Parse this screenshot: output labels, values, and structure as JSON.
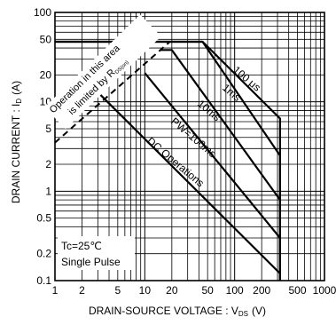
{
  "chart_data": {
    "type": "line",
    "title": "",
    "xlabel": "DRAIN-SOURCE VOLTAGE : V",
    "xlabel_sub": "DS",
    "xlabel_unit": "(V)",
    "ylabel": "DRAIN CURRENT : I",
    "ylabel_sub": "D",
    "ylabel_unit": "(A)",
    "x_scale": "log",
    "y_scale": "log",
    "xlim": [
      1,
      1000
    ],
    "ylim": [
      0.1,
      100
    ],
    "grid": true,
    "x_ticks": [
      {
        "v": 1,
        "label": "1"
      },
      {
        "v": 2,
        "label": "2"
      },
      {
        "v": 5,
        "label": "5"
      },
      {
        "v": 10,
        "label": "10"
      },
      {
        "v": 20,
        "label": "20"
      },
      {
        "v": 50,
        "label": "50"
      },
      {
        "v": 100,
        "label": "100"
      },
      {
        "v": 200,
        "label": "200"
      },
      {
        "v": 500,
        "label": "500"
      },
      {
        "v": 1000,
        "label": "1000"
      }
    ],
    "y_ticks": [
      {
        "v": 0.1,
        "label": "0.1"
      },
      {
        "v": 0.2,
        "label": "0.2"
      },
      {
        "v": 0.5,
        "label": "0.5"
      },
      {
        "v": 1,
        "label": "1"
      },
      {
        "v": 2,
        "label": "2"
      },
      {
        "v": 5,
        "label": "5"
      },
      {
        "v": 10,
        "label": "10"
      },
      {
        "v": 20,
        "label": "20"
      },
      {
        "v": 50,
        "label": "50"
      },
      {
        "v": 100,
        "label": "100"
      }
    ],
    "limit_line": {
      "x": [
        1,
        19
      ],
      "y": [
        3.5,
        47
      ]
    },
    "series": [
      {
        "name": "100 μs",
        "x": [
          1,
          44,
          320,
          320
        ],
        "y": [
          47,
          47,
          6.5,
          0.1
        ]
      },
      {
        "name": "1ms",
        "x": [
          1,
          44,
          320,
          320
        ],
        "y": [
          47,
          47,
          2.5,
          0.1
        ]
      },
      {
        "name": "10ms",
        "x": [
          15,
          20,
          320,
          320
        ],
        "y": [
          38,
          38,
          0.8,
          0.1
        ]
      },
      {
        "name": "PW=100ms",
        "x": [
          10,
          320,
          320
        ],
        "y": [
          21,
          0.3,
          0.1
        ]
      },
      {
        "name": "DC Operations",
        "x": [
          3.2,
          320
        ],
        "y": [
          12,
          0.12
        ]
      }
    ],
    "annotations": {
      "area_note_line1": "Operation in this area",
      "area_note_line2": "is limited by R",
      "area_note_sub": "DS(on)",
      "conditions_line1": "Tc=25℃",
      "conditions_line2": "Single Pulse"
    }
  }
}
